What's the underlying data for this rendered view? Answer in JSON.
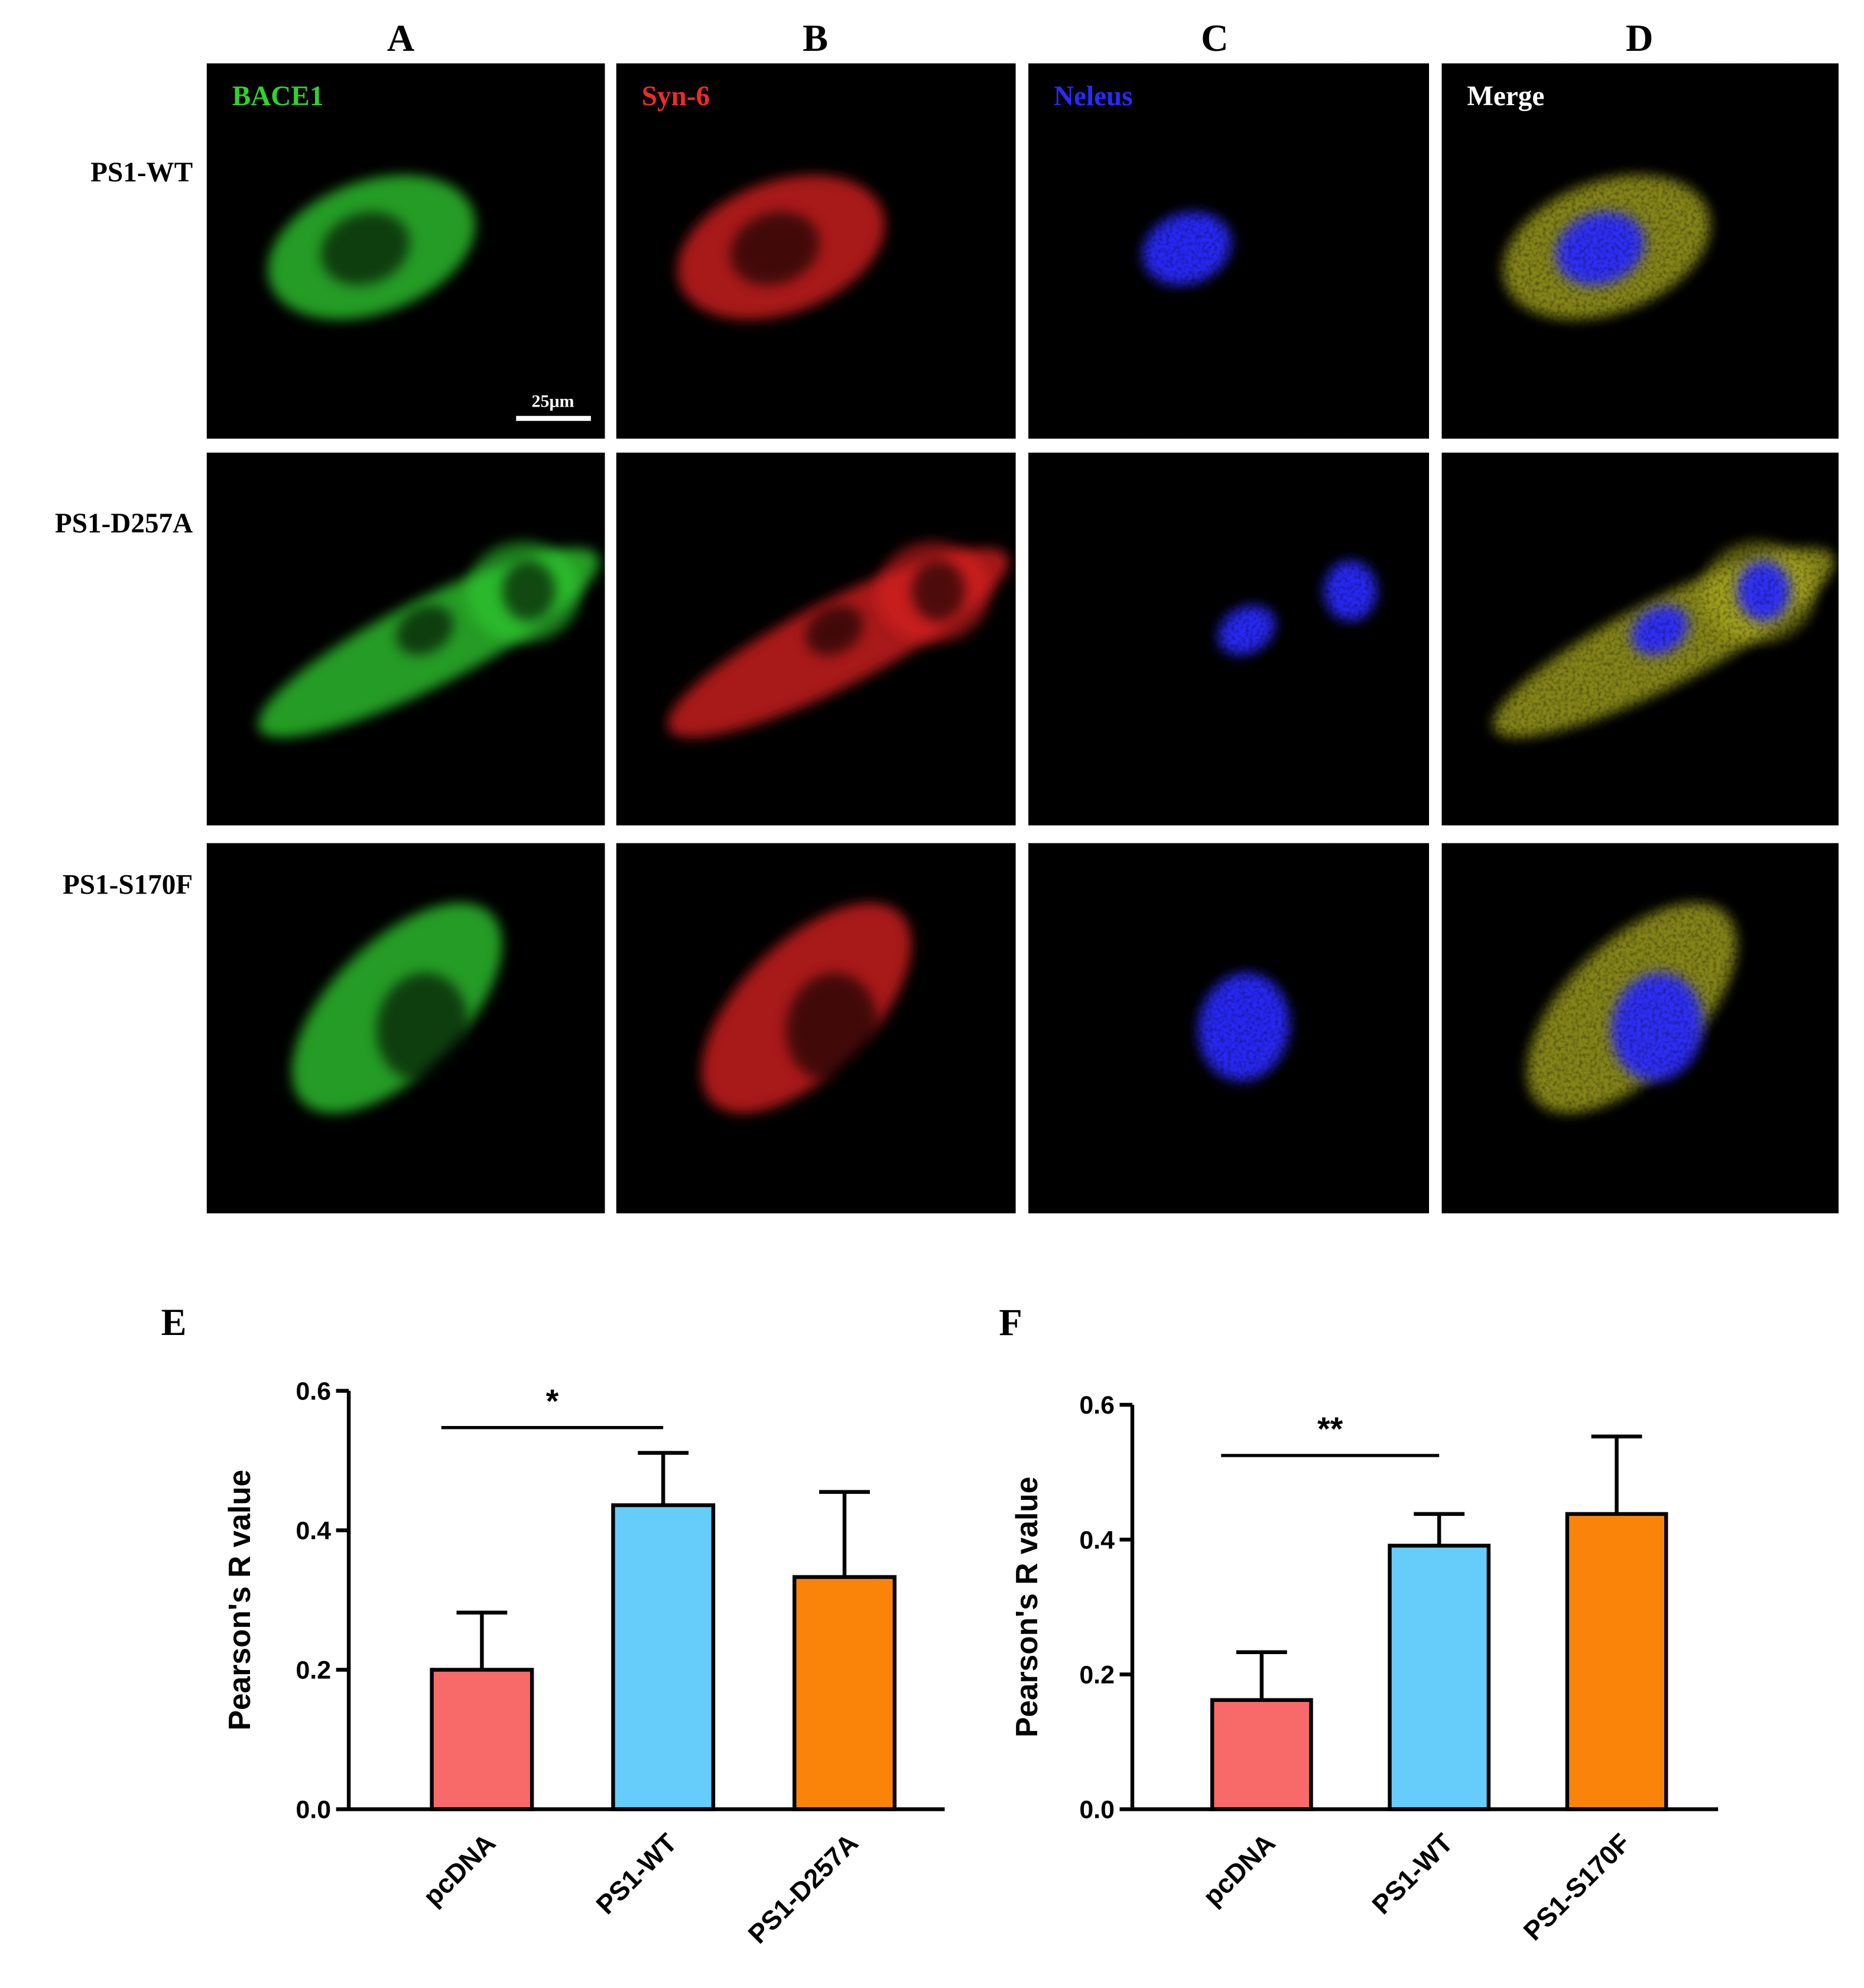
{
  "figure": {
    "column_labels": [
      "A",
      "B",
      "C",
      "D"
    ],
    "row_labels": [
      "PS1-WT",
      "PS1-D257A",
      "PS1-S170F"
    ],
    "channel_labels": [
      "BACE1",
      "Syn-6",
      "Neleus",
      "Merge"
    ],
    "scale_bar": "25μm"
  },
  "chart_data": [
    {
      "type": "bar",
      "panel_label": "E",
      "ylabel": "Pearson's R value",
      "categories": [
        "pcDNA",
        "PS1-WT",
        "PS1-D257A"
      ],
      "values": [
        0.2,
        0.436,
        0.333
      ],
      "errors": [
        0.082,
        0.075,
        0.122
      ],
      "colors": [
        "#f86a6a",
        "#66ccf9",
        "#f98409"
      ],
      "ylim": [
        0,
        0.6
      ],
      "yticks": [
        {
          "value": 0,
          "label": "0.0"
        },
        0.2,
        0.4,
        0.6
      ],
      "annotation": "*"
    },
    {
      "type": "bar",
      "panel_label": "F",
      "ylabel": "Pearson's R value",
      "categories": [
        "pcDNA",
        "PS1-WT",
        "PS1-S170F"
      ],
      "values": [
        0.162,
        0.391,
        0.438
      ],
      "errors": [
        0.071,
        0.047,
        0.115
      ],
      "colors": [
        "#f86a6a",
        "#66ccf9",
        "#f98409"
      ],
      "ylim": [
        0,
        0.6
      ],
      "yticks": [
        {
          "value": 0,
          "label": "0.0"
        },
        0.2,
        0.4,
        0.6
      ],
      "annotation": "**"
    }
  ]
}
